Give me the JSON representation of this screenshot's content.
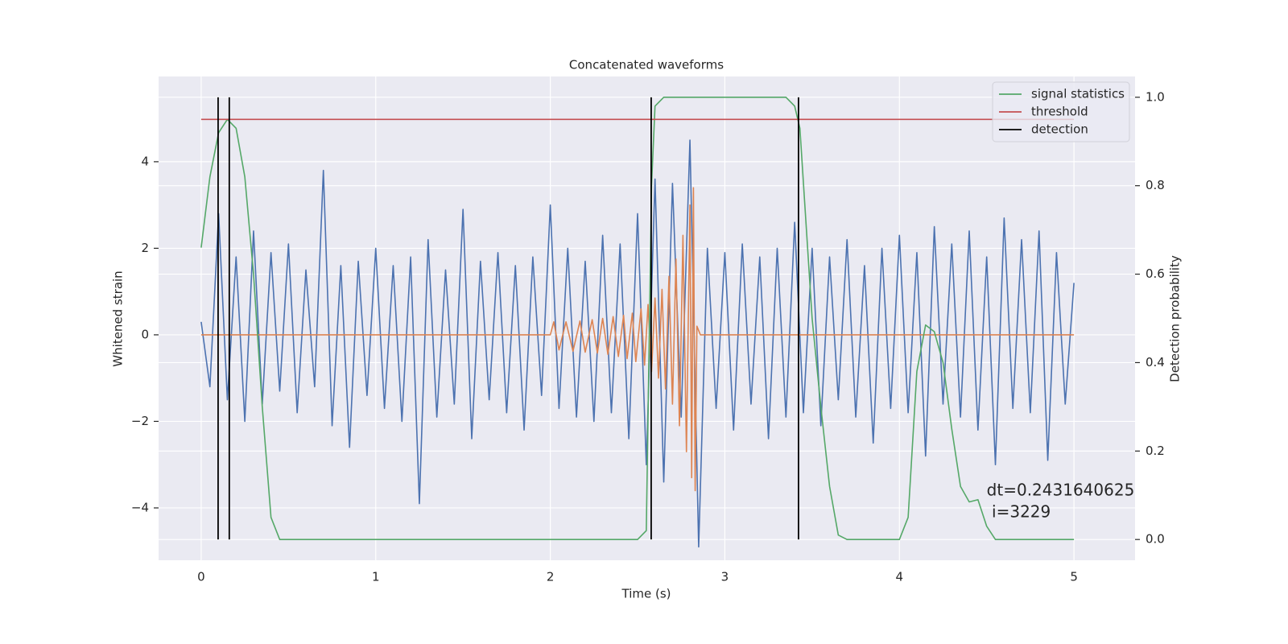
{
  "chart_data": {
    "type": "line",
    "title": "Concatenated waveforms",
    "xlabel": "Time (s)",
    "ylabel": "Whitened strain",
    "y2label": "Detection probability",
    "xlim": [
      -0.244,
      5.35
    ],
    "ylim": [
      -5.21,
      5.97
    ],
    "y2lim": [
      -0.047,
      1.047
    ],
    "xticks": [
      0,
      1,
      2,
      3,
      4,
      5
    ],
    "yticks": [
      {
        "value": -4,
        "label": "−4"
      },
      {
        "value": -2,
        "label": "−2"
      },
      0,
      2,
      4
    ],
    "y2ticks": [
      {
        "value": 0,
        "label": "0.0"
      },
      {
        "value": 0.2,
        "label": "0.2"
      },
      {
        "value": 0.4,
        "label": "0.4"
      },
      {
        "value": 0.6,
        "label": "0.6"
      },
      {
        "value": 0.8,
        "label": "0.8"
      },
      {
        "value": 1,
        "label": "1.0"
      }
    ],
    "grid": true,
    "legend": "upper right",
    "series": [
      {
        "color": "#4c72b0",
        "x": [
          0,
          0.05,
          0.1,
          0.15,
          0.2,
          0.25,
          0.3,
          0.35,
          0.4,
          0.45,
          0.5,
          0.55,
          0.6,
          0.65,
          0.7,
          0.75,
          0.8,
          0.85,
          0.9,
          0.95,
          1,
          1.05,
          1.1,
          1.15,
          1.2,
          1.25,
          1.3,
          1.35,
          1.4,
          1.45,
          1.5,
          1.55,
          1.6,
          1.65,
          1.7,
          1.75,
          1.8,
          1.85,
          1.9,
          1.95,
          2,
          2.05,
          2.1,
          2.15,
          2.2,
          2.25,
          2.3,
          2.35,
          2.4,
          2.45,
          2.5,
          2.55,
          2.6,
          2.65,
          2.7,
          2.75,
          2.8,
          2.85,
          2.9,
          2.95,
          3,
          3.05,
          3.1,
          3.15,
          3.2,
          3.25,
          3.3,
          3.35,
          3.4,
          3.45,
          3.5,
          3.55,
          3.6,
          3.65,
          3.7,
          3.75,
          3.8,
          3.85,
          3.9,
          3.95,
          4,
          4.05,
          4.1,
          4.15,
          4.2,
          4.25,
          4.3,
          4.35,
          4.4,
          4.45,
          4.5,
          4.55,
          4.6,
          4.65,
          4.7,
          4.75,
          4.8,
          4.85,
          4.9,
          4.95,
          5
        ],
        "values": [
          0.3,
          -1.2,
          2.8,
          -1.5,
          1.8,
          -2.0,
          2.4,
          -1.6,
          1.9,
          -1.3,
          2.1,
          -1.8,
          1.5,
          -1.2,
          3.8,
          -2.1,
          1.6,
          -2.6,
          1.7,
          -1.4,
          2.0,
          -1.7,
          1.6,
          -2.0,
          1.8,
          -3.9,
          2.2,
          -1.9,
          1.5,
          -1.6,
          2.9,
          -2.4,
          1.7,
          -1.5,
          1.9,
          -1.8,
          1.6,
          -2.2,
          1.8,
          -1.4,
          3.0,
          -1.7,
          2.0,
          -1.9,
          1.7,
          -2.0,
          2.3,
          -1.8,
          2.1,
          -2.4,
          2.8,
          -3.0,
          3.6,
          -3.4,
          3.5,
          -1.9,
          4.5,
          -4.9,
          2.0,
          -1.7,
          1.9,
          -2.2,
          2.1,
          -1.6,
          1.8,
          -2.4,
          2.0,
          -1.9,
          2.6,
          -1.8,
          2.0,
          -2.1,
          1.8,
          -1.5,
          2.2,
          -1.9,
          1.6,
          -2.5,
          2.0,
          -1.7,
          2.3,
          -1.8,
          1.9,
          -2.8,
          2.5,
          -1.6,
          2.1,
          -1.9,
          2.4,
          -2.2,
          1.8,
          -3.0,
          2.7,
          -1.7,
          2.2,
          -1.8,
          2.4,
          -2.9,
          1.9,
          -1.6,
          1.2
        ]
      },
      {
        "color": "#dd8452",
        "x": [
          0,
          2.0,
          2.02,
          2.05,
          2.09,
          2.13,
          2.17,
          2.2,
          2.24,
          2.27,
          2.3,
          2.33,
          2.36,
          2.39,
          2.42,
          2.44,
          2.47,
          2.49,
          2.52,
          2.54,
          2.56,
          2.58,
          2.6,
          2.62,
          2.64,
          2.66,
          2.68,
          2.7,
          2.72,
          2.74,
          2.76,
          2.78,
          2.8,
          2.81,
          2.82,
          2.83,
          2.84,
          2.86,
          3.0,
          5.0
        ],
        "values": [
          0,
          0,
          0.3,
          -0.35,
          0.3,
          -0.38,
          0.32,
          -0.4,
          0.35,
          -0.42,
          0.38,
          -0.45,
          0.42,
          -0.5,
          0.45,
          -0.55,
          0.5,
          -0.62,
          0.6,
          -0.7,
          0.7,
          -0.85,
          0.85,
          -1.0,
          1.05,
          -1.25,
          1.35,
          -1.6,
          1.75,
          -2.1,
          2.3,
          -2.7,
          3.0,
          -3.3,
          3.4,
          -3.6,
          0.2,
          0,
          0,
          0
        ]
      },
      {
        "name": "signal statistics",
        "color": "#55a868",
        "axis": "y2",
        "x": [
          0,
          0.05,
          0.1,
          0.15,
          0.2,
          0.25,
          0.3,
          0.35,
          0.4,
          0.45,
          2.5,
          2.55,
          2.58,
          2.6,
          2.65,
          3.35,
          3.4,
          3.43,
          3.5,
          3.55,
          3.6,
          3.65,
          3.7,
          4.0,
          4.05,
          4.1,
          4.15,
          4.2,
          4.25,
          4.3,
          4.35,
          4.4,
          4.45,
          4.5,
          4.55,
          5.0
        ],
        "values": [
          0.66,
          0.82,
          0.92,
          0.95,
          0.93,
          0.82,
          0.6,
          0.3,
          0.05,
          0.0,
          0.0,
          0.02,
          0.8,
          0.98,
          1.0,
          1.0,
          0.98,
          0.93,
          0.5,
          0.3,
          0.12,
          0.01,
          0.0,
          0.0,
          0.05,
          0.38,
          0.485,
          0.47,
          0.4,
          0.25,
          0.12,
          0.085,
          0.09,
          0.03,
          0.0,
          0.0
        ]
      },
      {
        "name": "threshold",
        "color": "#c44e52",
        "axis": "y2",
        "x": [
          0,
          5
        ],
        "values": [
          0.95,
          0.95
        ]
      }
    ],
    "detection": {
      "name": "detection",
      "color": "#000000",
      "x": [
        0.097,
        0.161,
        2.578,
        3.422
      ],
      "span": [
        0,
        1
      ]
    },
    "annotation": {
      "text": [
        "dt=0.2431640625",
        " i=3229"
      ],
      "x": 4.5,
      "y": 0.11
    }
  }
}
